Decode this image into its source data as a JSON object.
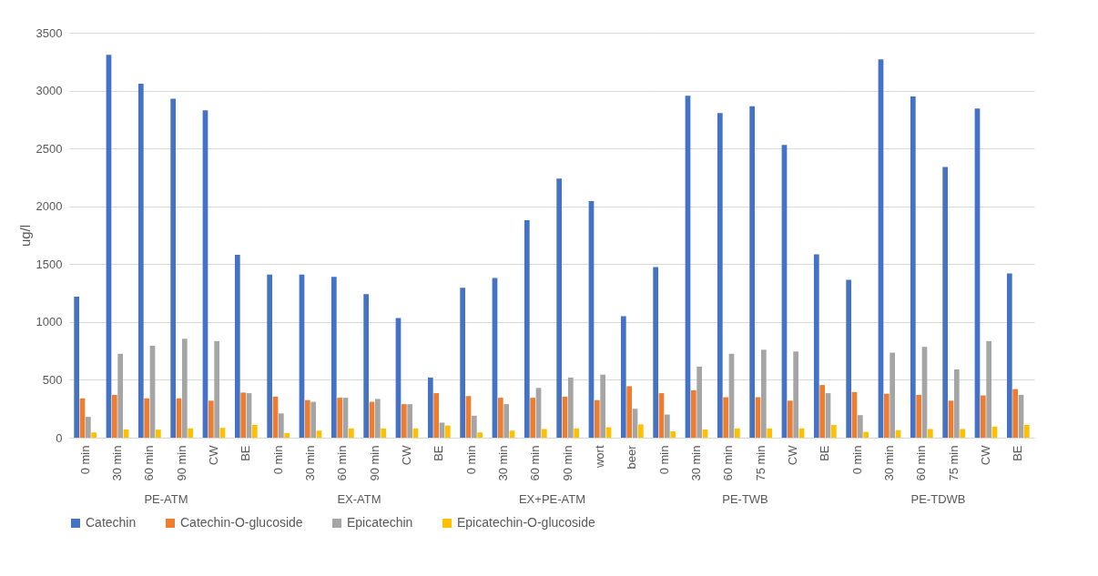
{
  "chart_data": [
    {
      "type": "bar",
      "xlabel": "PE-ATM",
      "ylabel": "ug/l",
      "categories": [
        "0 min",
        "30 min",
        "60 min",
        "90 min",
        "CW",
        "BE"
      ],
      "ylim": [
        0,
        3500
      ],
      "yticks": [
        0,
        500,
        1000,
        1500,
        2000,
        2500,
        3000,
        3500
      ],
      "grid": "y",
      "legend": "bottom",
      "series": [
        {
          "name": "Catechin",
          "color": "#4472c4",
          "values": [
            1220,
            3310,
            3060,
            2930,
            2830,
            1580
          ]
        },
        {
          "name": "Catechin-O-glucoside",
          "color": "#ed7d31",
          "values": [
            340,
            370,
            340,
            340,
            320,
            390
          ]
        },
        {
          "name": "Epicatechin",
          "color": "#a5a5a5",
          "values": [
            180,
            725,
            795,
            855,
            835,
            385
          ]
        },
        {
          "name": "Epicatechin-O-glucoside",
          "color": "#ffc000",
          "values": [
            45,
            70,
            70,
            80,
            85,
            110
          ]
        }
      ]
    },
    {
      "type": "bar",
      "xlabel": "EX-ATM",
      "categories": [
        "0 min",
        "30 min",
        "60 min",
        "90 min",
        "CW",
        "BE"
      ],
      "ylim": [
        0,
        3500
      ],
      "yticks": [
        0,
        500,
        1000,
        1500,
        2000,
        2500,
        3000,
        3500
      ],
      "tick_labels": "x",
      "grid": "y",
      "legend": "bottom",
      "series": [
        {
          "name": "Catechin",
          "color": "#4472c4",
          "values": [
            1410,
            1410,
            1390,
            1240,
            1035,
            520
          ]
        },
        {
          "name": "Catechin-O-glucoside",
          "color": "#ed7d31",
          "values": [
            355,
            325,
            345,
            310,
            290,
            385
          ]
        },
        {
          "name": "Epicatechin",
          "color": "#a5a5a5",
          "values": [
            210,
            310,
            345,
            335,
            290,
            130
          ]
        },
        {
          "name": "Epicatechin-O-glucoside",
          "color": "#ffc000",
          "values": [
            40,
            60,
            80,
            80,
            80,
            105
          ]
        }
      ]
    },
    {
      "type": "bar",
      "xlabel": "EX+PE-ATM",
      "categories": [
        "0 min",
        "30 min",
        "60 min",
        "90 min",
        "wort",
        "beer"
      ],
      "ylim": [
        0,
        3500
      ],
      "yticks": [
        0,
        500,
        1000,
        1500,
        2000,
        2500,
        3000,
        3500
      ],
      "tick_labels": "x",
      "grid": "y",
      "legend": "bottom",
      "series": [
        {
          "name": "Catechin",
          "color": "#4472c4",
          "values": [
            1295,
            1380,
            1880,
            2240,
            2045,
            1050
          ]
        },
        {
          "name": "Catechin-O-glucoside",
          "color": "#ed7d31",
          "values": [
            360,
            345,
            345,
            355,
            325,
            445
          ]
        },
        {
          "name": "Epicatechin",
          "color": "#a5a5a5",
          "values": [
            190,
            290,
            430,
            520,
            545,
            250
          ]
        },
        {
          "name": "Epicatechin-O-glucoside",
          "color": "#ffc000",
          "values": [
            45,
            60,
            75,
            80,
            90,
            115
          ]
        }
      ]
    },
    {
      "type": "bar",
      "xlabel": "PE-TWB",
      "categories": [
        "0 min",
        "30 min",
        "60 min",
        "75 min",
        "CW",
        "BE"
      ],
      "ylim": [
        0,
        3500
      ],
      "yticks": [
        0,
        500,
        1000,
        1500,
        2000,
        2500,
        3000,
        3500
      ],
      "tick_labels": "x",
      "grid": "y",
      "legend": "bottom",
      "series": [
        {
          "name": "Catechin",
          "color": "#4472c4",
          "values": [
            1475,
            2955,
            2805,
            2865,
            2530,
            1585
          ]
        },
        {
          "name": "Catechin-O-glucoside",
          "color": "#ed7d31",
          "values": [
            385,
            410,
            350,
            350,
            320,
            455
          ]
        },
        {
          "name": "Epicatechin",
          "color": "#a5a5a5",
          "values": [
            200,
            615,
            725,
            760,
            745,
            385
          ]
        },
        {
          "name": "Epicatechin-O-glucoside",
          "color": "#ffc000",
          "values": [
            55,
            70,
            80,
            80,
            80,
            110
          ]
        }
      ]
    },
    {
      "type": "bar",
      "xlabel": "PE-TDWB",
      "categories": [
        "0 min",
        "30 min",
        "60 min",
        "75 min",
        "CW",
        "BE"
      ],
      "ylim": [
        0,
        3500
      ],
      "yticks": [
        0,
        500,
        1000,
        1500,
        2000,
        2500,
        3000,
        3500
      ],
      "tick_labels": "x",
      "grid": "y",
      "legend": "bottom",
      "series": [
        {
          "name": "Catechin",
          "color": "#4472c4",
          "values": [
            1365,
            3270,
            2950,
            2340,
            2845,
            1420
          ]
        },
        {
          "name": "Catechin-O-glucoside",
          "color": "#ed7d31",
          "values": [
            395,
            380,
            370,
            320,
            365,
            420
          ]
        },
        {
          "name": "Epicatechin",
          "color": "#a5a5a5",
          "values": [
            195,
            735,
            785,
            590,
            835,
            370
          ]
        },
        {
          "name": "Epicatechin-O-glucoside",
          "color": "#ffc000",
          "values": [
            50,
            65,
            75,
            75,
            95,
            110
          ]
        }
      ]
    }
  ]
}
